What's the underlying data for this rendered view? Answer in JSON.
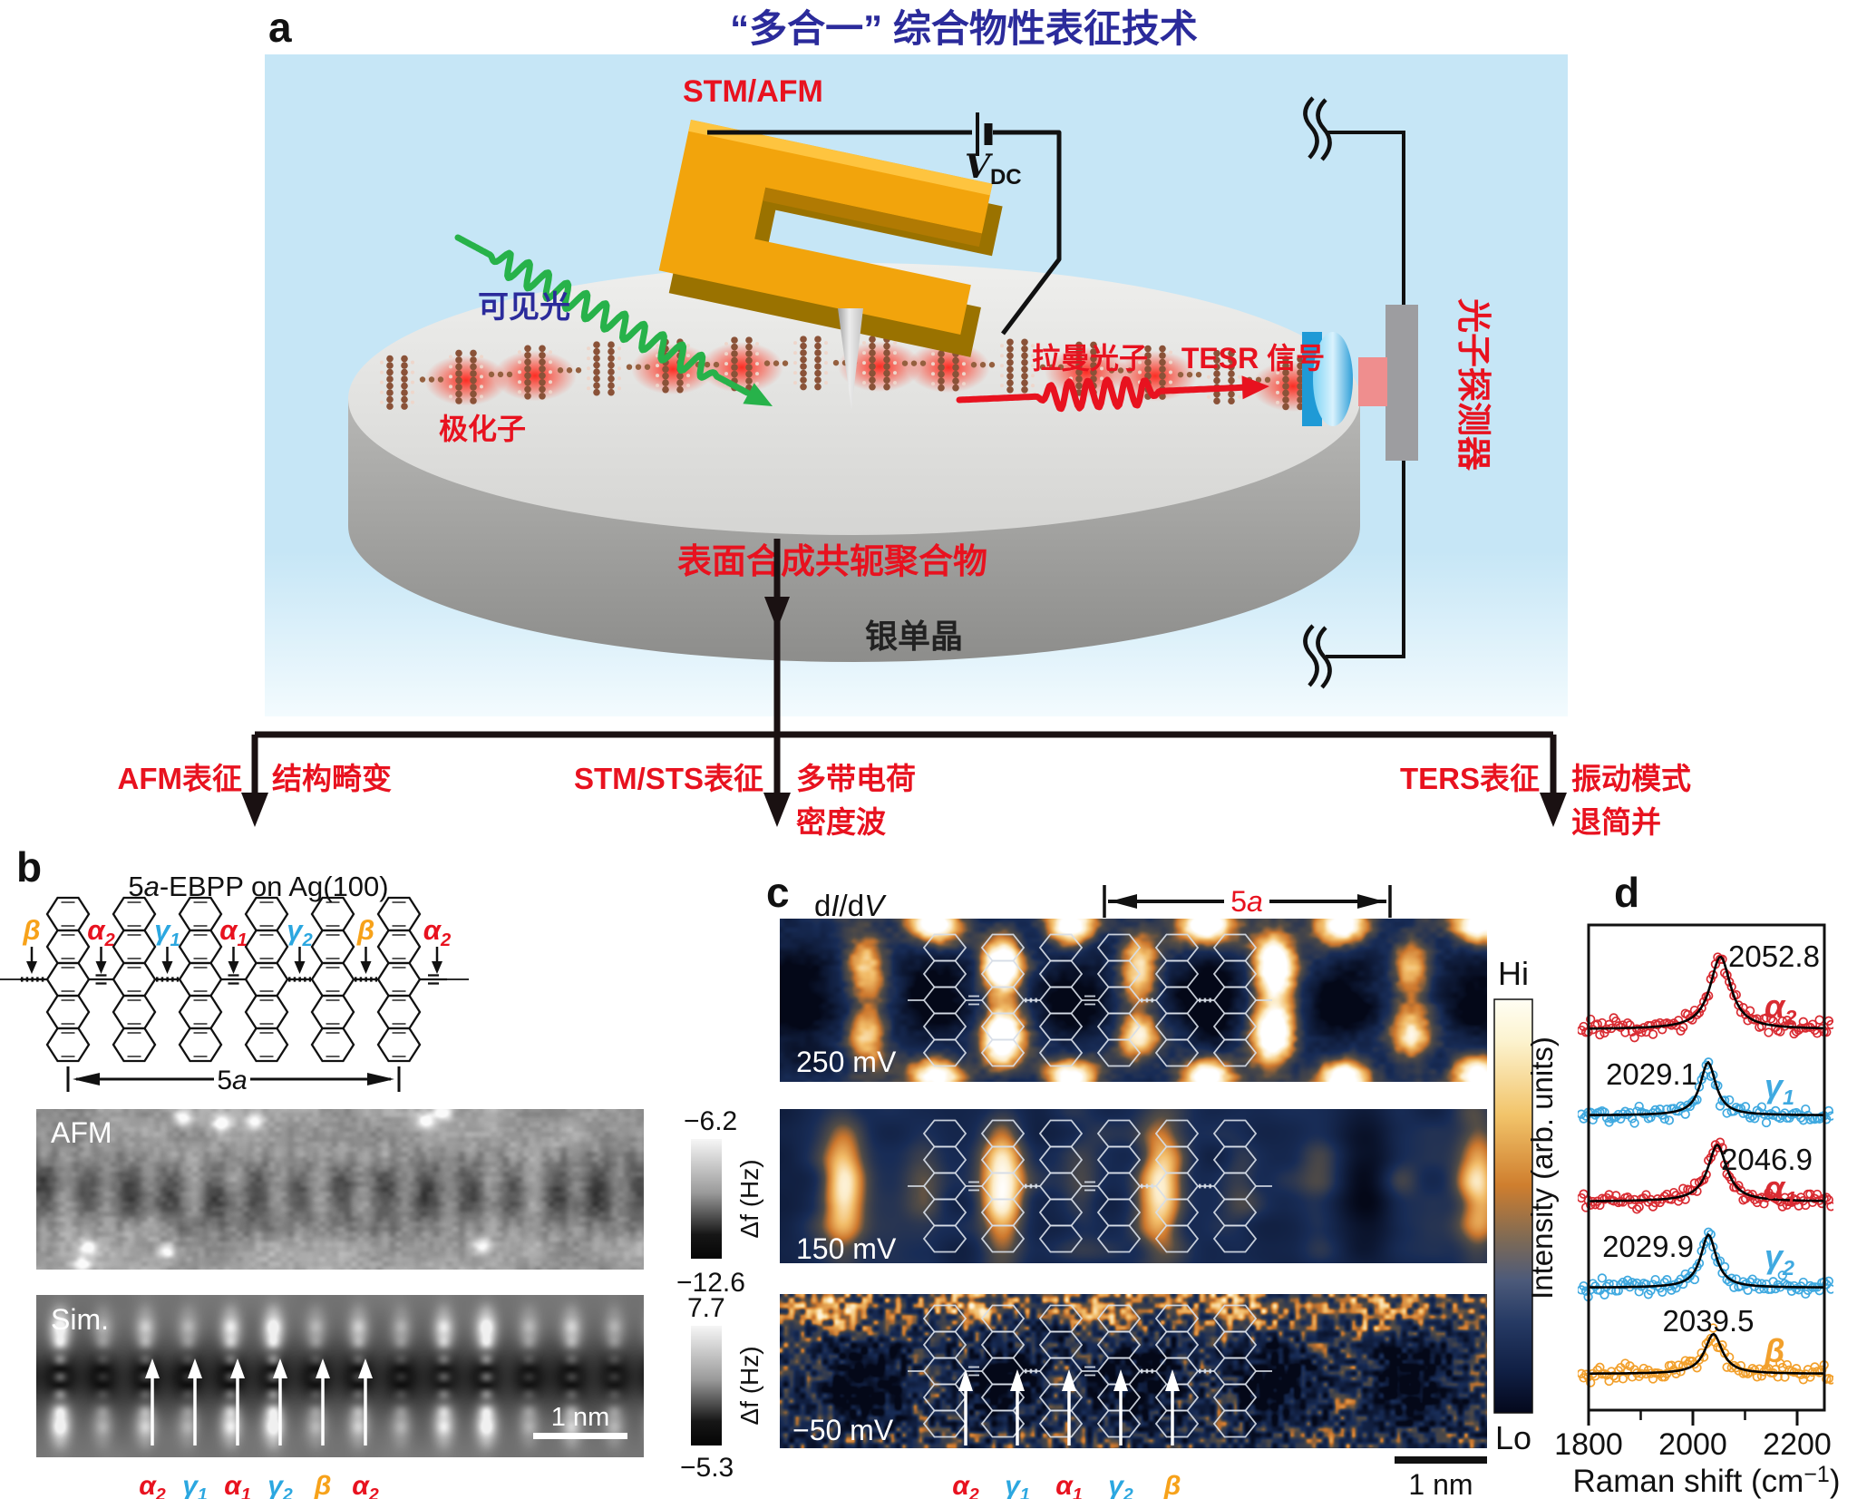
{
  "panel_labels": {
    "a": "a",
    "b": "b",
    "c": "c",
    "d": "d"
  },
  "panel_a": {
    "title": "“多合一” 综合物性表征技术",
    "stm_afm": "STM/AFM",
    "vdc_main": "V",
    "vdc_sub": "DC",
    "visible_light": "可见光",
    "polaron": "极化子",
    "raman_photon": "拉曼光子",
    "tesr_signal": "TESR 信号",
    "detector": "光子探测器",
    "polymer": "表面合成共轭聚合物",
    "silver": "银单晶",
    "accent_red": "#e8121f",
    "accent_navy": "#2b2b9b",
    "laser_green": "#27b24a"
  },
  "flow": {
    "afm_label": "AFM表征",
    "afm_result": "结构畸变",
    "stm_label": "STM/STS表征",
    "stm_result_1": "多带电荷",
    "stm_result_2": "密度波",
    "ters_label": "TERS表征",
    "ters_result_1": "振动模式",
    "ters_result_2": "退简并"
  },
  "panel_b": {
    "title_p1": "5",
    "title_p2": "a",
    "title_p3": "-EBPP on Ag(100)",
    "span_num": "5",
    "span_ital": "a",
    "afm_label": "AFM",
    "sim_label": "Sim.",
    "scalebar": "1 nm",
    "cb_afm_top": "−6.2",
    "cb_afm_bottom": "−12.6",
    "cb_afm_unit": "Δf (Hz)",
    "cb_sim_top": "7.7",
    "cb_sim_bottom": "−5.3",
    "cb_sim_unit": "Δf (Hz)",
    "bond_labels": [
      {
        "sym": "β",
        "sub": "",
        "color": "#f7a21a"
      },
      {
        "sym": "α",
        "sub": "2",
        "color": "#e8121f"
      },
      {
        "sym": "γ",
        "sub": "1",
        "color": "#2ba7e0"
      },
      {
        "sym": "α",
        "sub": "1",
        "color": "#e8121f"
      },
      {
        "sym": "γ",
        "sub": "2",
        "color": "#2ba7e0"
      },
      {
        "sym": "β",
        "sub": "",
        "color": "#f7a21a"
      },
      {
        "sym": "α",
        "sub": "2",
        "color": "#e8121f"
      }
    ],
    "arrow_labels": [
      {
        "sym": "α",
        "sub": "2",
        "color": "#e8121f"
      },
      {
        "sym": "γ",
        "sub": "1",
        "color": "#2ba7e0"
      },
      {
        "sym": "α",
        "sub": "1",
        "color": "#e8121f"
      },
      {
        "sym": "γ",
        "sub": "2",
        "color": "#2ba7e0"
      },
      {
        "sym": "β",
        "sub": "",
        "color": "#f7a21a"
      },
      {
        "sym": "α",
        "sub": "2",
        "color": "#e8121f"
      }
    ]
  },
  "panel_c": {
    "didv_p1": "d",
    "didv_p2": "I",
    "didv_p3": "/d",
    "didv_p4": "V",
    "span_num": "5",
    "span_ital": "a",
    "bias_250": "250 mV",
    "bias_150": "150 mV",
    "bias_m50": "−50 mV",
    "cb_top": "Hi",
    "cb_bottom": "Lo",
    "scalebar": "1 nm",
    "arrow_labels": [
      {
        "sym": "α",
        "sub": "2",
        "color": "#e8121f"
      },
      {
        "sym": "γ",
        "sub": "1",
        "color": "#2ba7e0"
      },
      {
        "sym": "α",
        "sub": "1",
        "color": "#e8121f"
      },
      {
        "sym": "γ",
        "sub": "2",
        "color": "#2ba7e0"
      },
      {
        "sym": "β",
        "sub": "",
        "color": "#f7a21a"
      }
    ]
  },
  "chart_data": {
    "type": "scatter",
    "title": "",
    "xlabel": "Raman shift (cm⁻¹)",
    "xlabel_pre": "Raman shift (cm",
    "xlabel_sup": "−1",
    "xlabel_post": ")",
    "ylabel": "Intensity (arb. units)",
    "xlim": [
      1800,
      2252
    ],
    "xticks": [
      1800,
      2000,
      2200
    ],
    "xticks_minor": [
      1900,
      2100
    ],
    "grid": false,
    "series": [
      {
        "name": "alpha2",
        "sym": "α",
        "sub": "2",
        "color": "#d92b32",
        "peak_cm": 2052.8,
        "peak_label": "2052.8",
        "amplitude": 1.0,
        "hwhm_cm": 24
      },
      {
        "name": "gamma1",
        "sym": "γ",
        "sub": "1",
        "color": "#3fa9e0",
        "peak_cm": 2029.1,
        "peak_label": "2029.1",
        "amplitude": 0.73,
        "hwhm_cm": 18
      },
      {
        "name": "alpha1",
        "sym": "α",
        "sub": "1",
        "color": "#d92b32",
        "peak_cm": 2046.9,
        "peak_label": "2046.9",
        "amplitude": 0.78,
        "hwhm_cm": 22
      },
      {
        "name": "gamma2",
        "sym": "γ",
        "sub": "2",
        "color": "#3fa9e0",
        "peak_cm": 2029.9,
        "peak_label": "2029.9",
        "amplitude": 0.73,
        "hwhm_cm": 18
      },
      {
        "name": "beta",
        "sym": "β",
        "sub": "",
        "color": "#f2a02c",
        "peak_cm": 2039.5,
        "peak_label": "2039.5",
        "amplitude": 0.55,
        "hwhm_cm": 20
      }
    ]
  }
}
